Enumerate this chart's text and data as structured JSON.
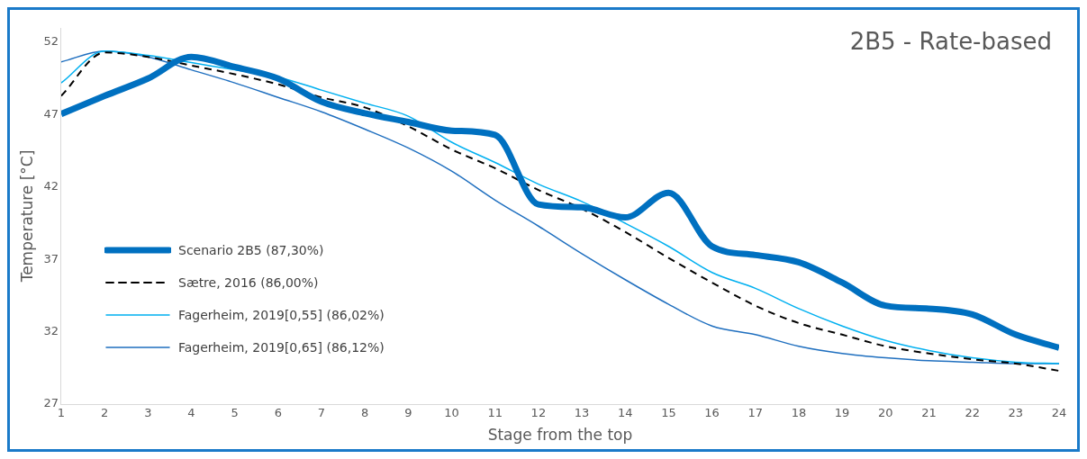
{
  "chart_data": {
    "type": "line",
    "title": "2B5 - Rate-based",
    "xlabel": "Stage from the top",
    "ylabel": "Temperature [°C]",
    "x": [
      1,
      2,
      3,
      4,
      5,
      6,
      7,
      8,
      9,
      10,
      11,
      12,
      13,
      14,
      15,
      16,
      17,
      18,
      19,
      20,
      21,
      22,
      23,
      24
    ],
    "xlim": [
      1,
      24
    ],
    "xticks": [
      1,
      2,
      3,
      4,
      5,
      6,
      7,
      8,
      9,
      10,
      11,
      12,
      13,
      14,
      15,
      16,
      17,
      18,
      19,
      20,
      21,
      22,
      23,
      24
    ],
    "ylim": [
      27,
      53
    ],
    "yticks": [
      27,
      32,
      37,
      42,
      47,
      52
    ],
    "grid": false,
    "legend": "bottom left",
    "series": [
      {
        "name": "Scenario 2B5 (87,30%)",
        "color": "#0070c0",
        "line_style": "solid",
        "values": [
          47.05,
          48.3,
          49.5,
          51.0,
          50.3,
          49.5,
          47.9,
          47.1,
          46.5,
          45.9,
          45.6,
          40.8,
          40.6,
          39.9,
          41.6,
          37.9,
          37.3,
          36.8,
          35.4,
          33.8,
          33.6,
          33.2,
          31.8,
          30.9
        ]
      },
      {
        "name": "Sætre, 2016 (86,00%)",
        "color": "#000000",
        "line_style": "dashed",
        "values": [
          48.3,
          51.3,
          51.0,
          50.4,
          49.8,
          49.1,
          48.2,
          47.5,
          46.2,
          44.6,
          43.3,
          41.8,
          40.5,
          38.9,
          37.1,
          35.4,
          33.8,
          32.6,
          31.8,
          31.0,
          30.5,
          30.1,
          29.8,
          29.3
        ]
      },
      {
        "name": "Fagerheim, 2019[0,55] (86,02%)",
        "color": "#00b0f0",
        "line_style": "solid",
        "values": [
          49.2,
          51.4,
          51.1,
          50.6,
          50.1,
          49.6,
          48.7,
          47.8,
          46.9,
          45.1,
          43.7,
          42.2,
          41.0,
          39.5,
          37.9,
          36.1,
          35.0,
          33.6,
          32.4,
          31.4,
          30.7,
          30.2,
          29.9,
          29.8
        ]
      },
      {
        "name": "Fagerheim, 2019[0,65] (86,12%)",
        "color": "#1f6fbf",
        "line_style": "solid",
        "values": [
          50.65,
          51.4,
          51.0,
          50.1,
          49.2,
          48.2,
          47.2,
          46.0,
          44.7,
          43.1,
          41.1,
          39.3,
          37.4,
          35.6,
          33.9,
          32.4,
          31.8,
          31.0,
          30.5,
          30.2,
          30.0,
          29.9,
          29.8,
          29.8
        ]
      }
    ]
  }
}
